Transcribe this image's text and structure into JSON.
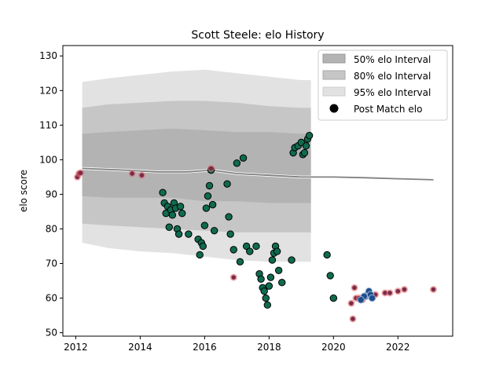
{
  "chart_data": {
    "type": "scatter",
    "title": "Scott Steele: elo History",
    "xlabel": "",
    "ylabel": "elo score",
    "xlim": [
      2011.6,
      2023.7
    ],
    "ylim": [
      49,
      133
    ],
    "x_ticks": [
      2012,
      2014,
      2016,
      2018,
      2020,
      2022
    ],
    "y_ticks": [
      50,
      60,
      70,
      80,
      90,
      100,
      110,
      120,
      130
    ],
    "legend": {
      "placement": "top-right",
      "entries": [
        "50% elo Interval",
        "80% elo Interval",
        "95% elo Interval",
        "Post Match elo"
      ]
    },
    "colors": {
      "band50": "#b3b3b3",
      "band80": "#c6c6c6",
      "band95": "#e2e2e2",
      "mean_line": "#808080",
      "win_point": "#0f6b4f",
      "loss_point": "#7b2a4a",
      "loss_ring": "#e07070",
      "late_point": "#1f4e8c"
    },
    "intervals": {
      "x": [
        2012.2,
        2013.0,
        2014.0,
        2015.0,
        2016.0,
        2017.0,
        2018.0,
        2019.0,
        2019.3
      ],
      "upper95": [
        122.5,
        123.5,
        124.5,
        125.5,
        126.0,
        125.0,
        124.0,
        123.0,
        123.0
      ],
      "upper80": [
        115.0,
        116.0,
        116.5,
        117.0,
        117.0,
        116.5,
        115.5,
        115.0,
        115.0
      ],
      "upper50": [
        107.5,
        108.0,
        108.5,
        109.0,
        108.5,
        108.0,
        108.0,
        107.5,
        107.5
      ],
      "lower50": [
        89.5,
        89.0,
        89.0,
        89.0,
        88.0,
        88.0,
        87.5,
        87.5,
        87.5
      ],
      "lower80": [
        81.5,
        81.0,
        80.5,
        80.0,
        79.5,
        79.0,
        79.0,
        79.0,
        79.0
      ],
      "lower95": [
        76.0,
        74.5,
        73.5,
        73.0,
        72.0,
        71.0,
        70.5,
        70.5,
        70.5
      ]
    },
    "mean_line": {
      "x": [
        2012.2,
        2013.5,
        2014.5,
        2015.5,
        2016.2,
        2017.0,
        2018.0,
        2019.0,
        2020.0,
        2021.0,
        2022.0,
        2023.1
      ],
      "y": [
        97.5,
        97.0,
        96.5,
        96.5,
        97.0,
        96.0,
        95.5,
        95.0,
        95.0,
        94.8,
        94.5,
        94.2
      ]
    },
    "series": [
      {
        "kind": "win",
        "x": [
          2014.7,
          2014.75,
          2014.8,
          2014.85,
          2014.9,
          2014.95,
          2015.0,
          2015.05,
          2015.1,
          2015.15,
          2015.2,
          2015.25,
          2015.3,
          2015.5,
          2015.8,
          2015.85,
          2015.9,
          2015.95,
          2016.0,
          2016.05,
          2016.1,
          2016.15,
          2016.2,
          2016.25,
          2016.3,
          2016.7,
          2016.75,
          2016.8,
          2016.9,
          2017.0,
          2017.1,
          2017.2,
          2017.3,
          2017.4,
          2017.6,
          2017.7,
          2017.75,
          2017.8,
          2017.85,
          2017.9,
          2017.95,
          2018.0,
          2018.05,
          2018.1,
          2018.15,
          2018.2,
          2018.25,
          2018.3,
          2018.4,
          2018.7,
          2018.75,
          2018.8,
          2018.9,
          2019.0,
          2019.05,
          2019.1,
          2019.15,
          2019.2,
          2019.25,
          2019.8,
          2019.9,
          2020.0
        ],
        "y": [
          90.5,
          87.5,
          84.5,
          86.5,
          80.5,
          85.5,
          84.0,
          87.5,
          86.0,
          80.0,
          78.5,
          86.5,
          84.5,
          78.5,
          77.0,
          72.5,
          76.0,
          75.0,
          81.0,
          86.0,
          89.5,
          92.5,
          97.0,
          87.0,
          79.5,
          93.0,
          83.5,
          78.5,
          74.0,
          99.0,
          70.5,
          100.5,
          75.0,
          73.5,
          75.0,
          67.0,
          65.5,
          63.0,
          62.0,
          60.0,
          58.0,
          63.5,
          66.0,
          71.0,
          73.0,
          75.0,
          73.5,
          68.0,
          64.5,
          71.0,
          102.0,
          103.5,
          104.0,
          105.0,
          101.5,
          102.0,
          104.0,
          106.0,
          107.0,
          72.5,
          66.5,
          60.0
        ]
      },
      {
        "kind": "loss",
        "x": [
          2012.05,
          2012.1,
          2012.15,
          2013.75,
          2014.05,
          2016.2,
          2016.9,
          2020.55,
          2020.6,
          2020.65,
          2020.7,
          2020.8,
          2020.9,
          2021.3,
          2021.6,
          2021.75,
          2022.0,
          2022.2,
          2023.1
        ],
        "y": [
          95.0,
          96.0,
          96.2,
          96.0,
          95.5,
          97.5,
          66.0,
          58.5,
          54.0,
          63.0,
          60.0,
          60.0,
          59.5,
          61.0,
          61.5,
          61.5,
          62.0,
          62.5,
          62.5
        ]
      },
      {
        "kind": "late",
        "x": [
          2021.0,
          2021.05,
          2021.1,
          2021.15,
          2021.2,
          2020.95,
          2020.85
        ],
        "y": [
          60.5,
          61.0,
          62.0,
          61.0,
          60.0,
          60.5,
          59.5
        ]
      }
    ]
  }
}
